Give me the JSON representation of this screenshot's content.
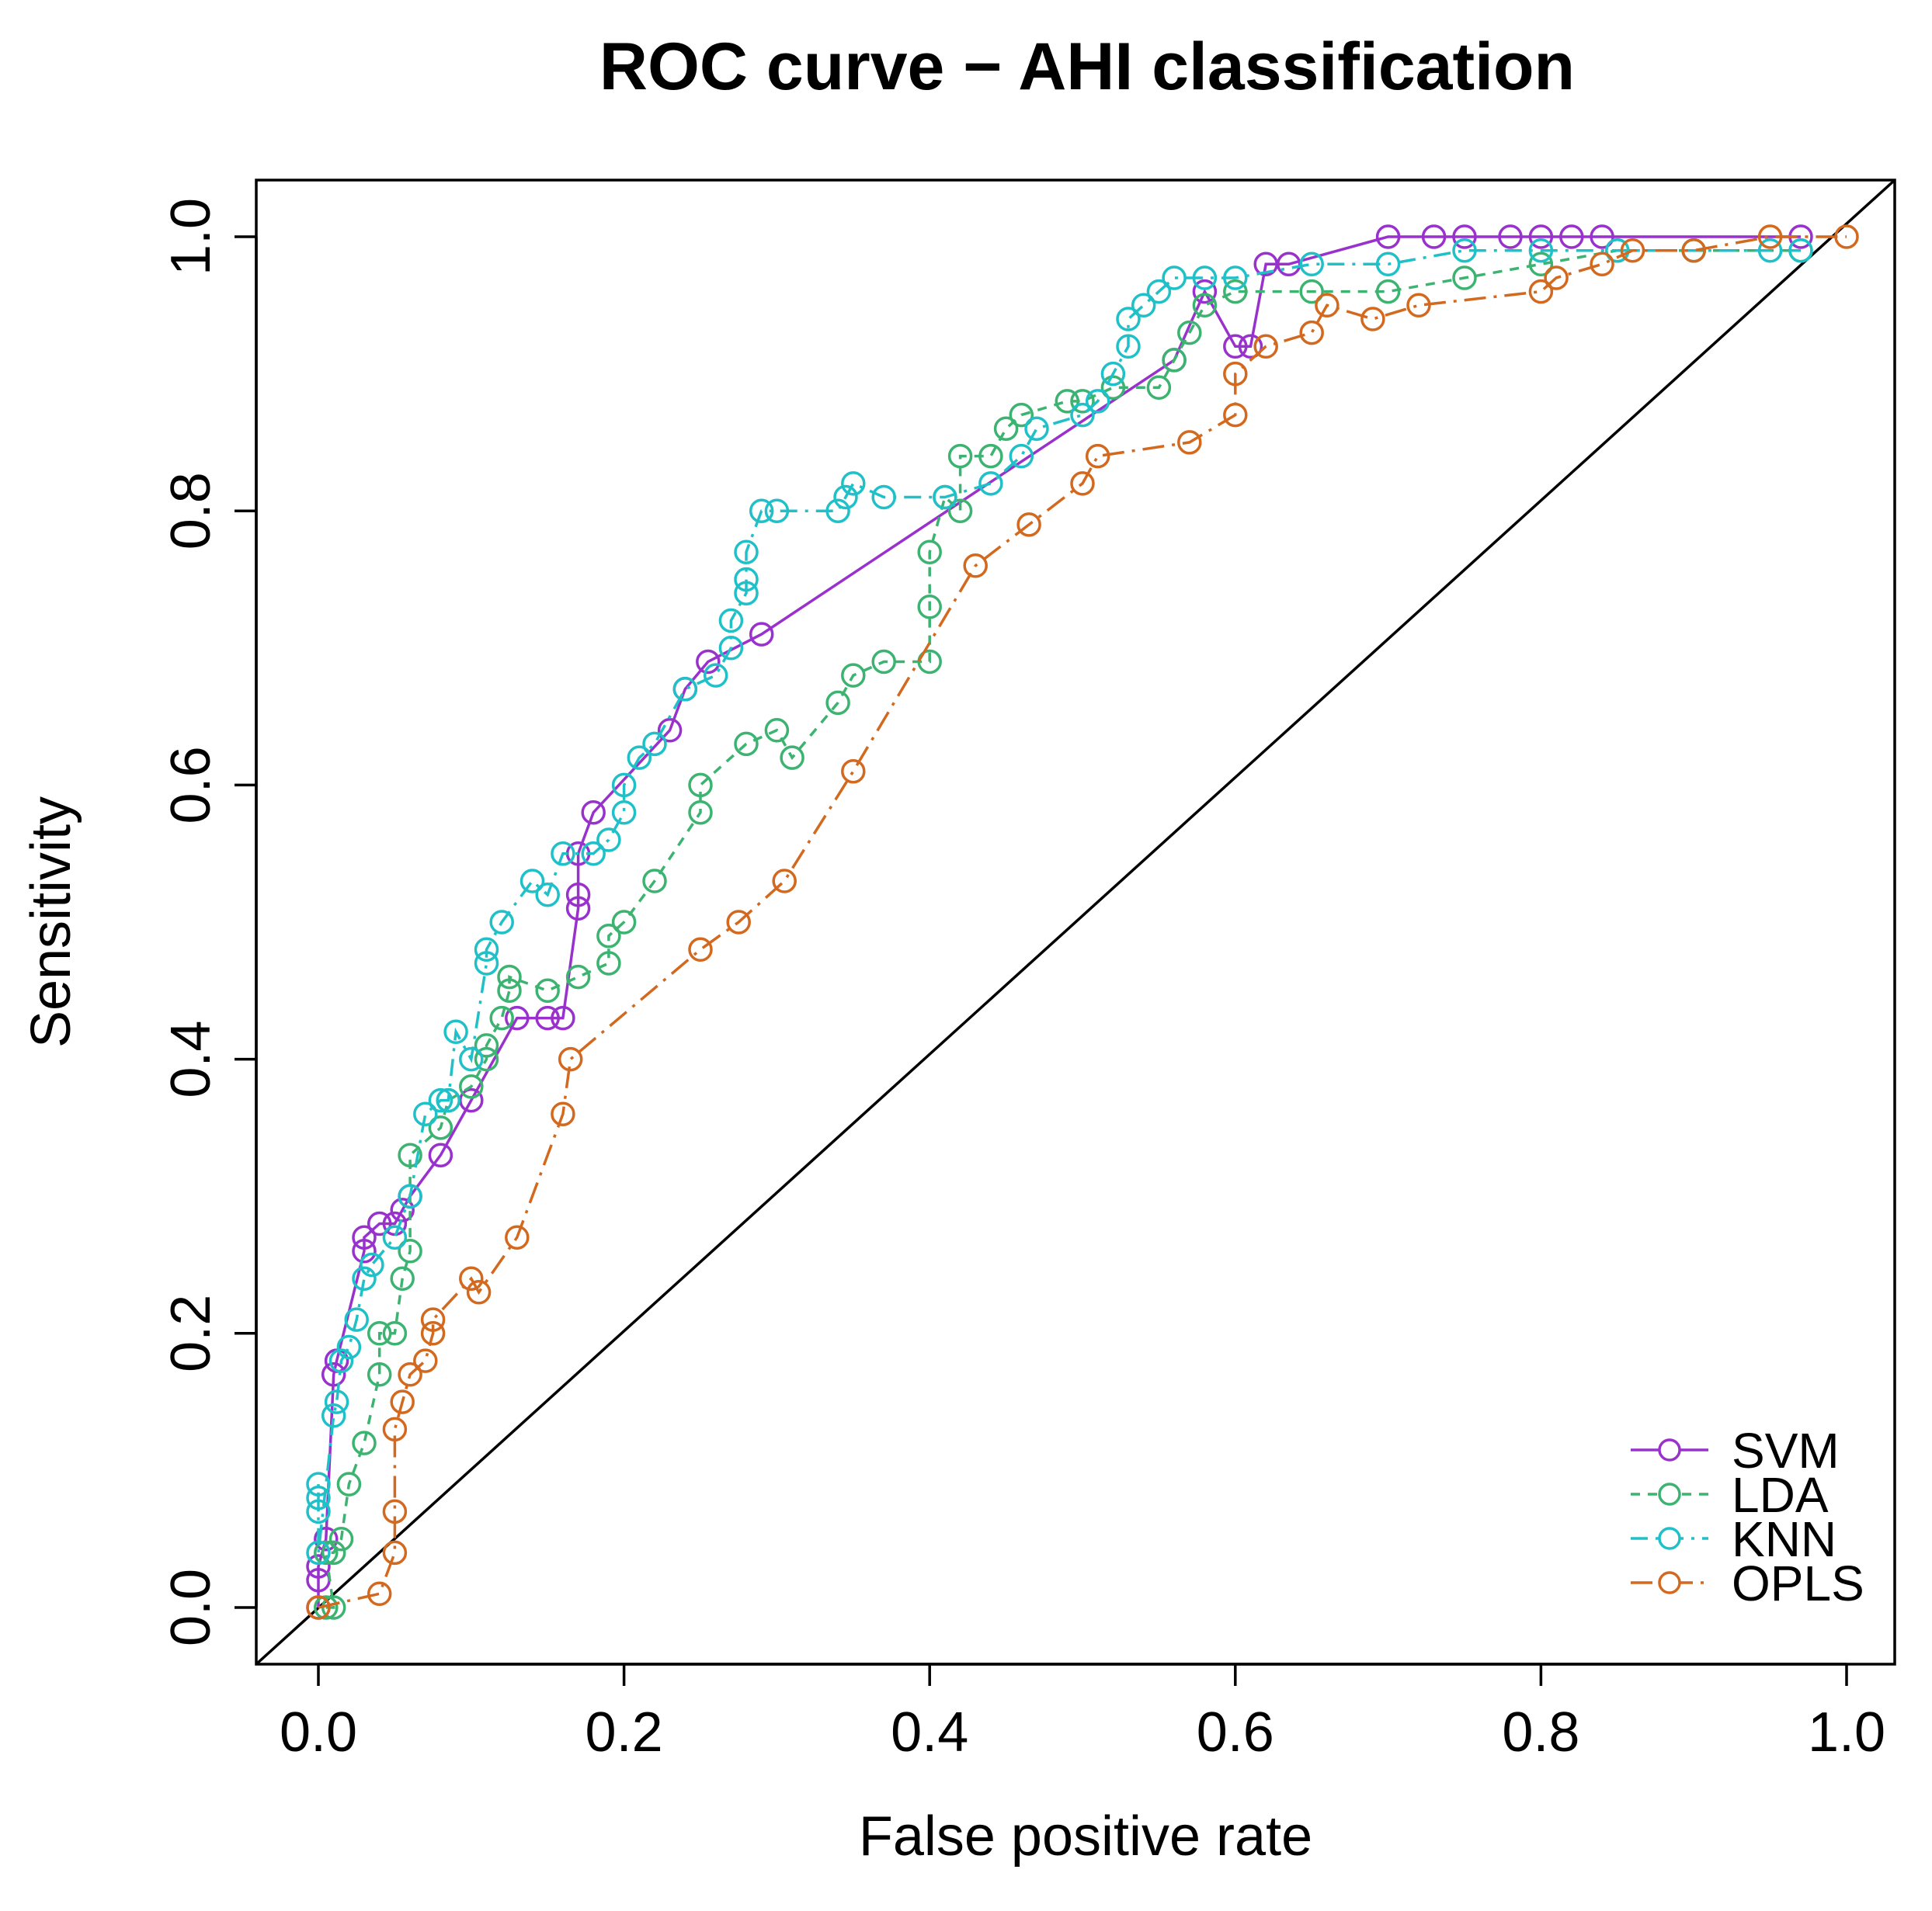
{
  "chart_data": {
    "type": "line",
    "title": "ROC curve − AHI classification",
    "xlabel": "False positive rate",
    "ylabel": "Sensitivity",
    "xlim": [
      0,
      1
    ],
    "ylim": [
      0,
      1
    ],
    "xticks": [
      "0.0",
      "0.2",
      "0.4",
      "0.6",
      "0.8",
      "1.0"
    ],
    "yticks": [
      "0.0",
      "0.2",
      "0.4",
      "0.6",
      "0.8",
      "1.0"
    ],
    "xtick_values": [
      0,
      0.2,
      0.4,
      0.6,
      0.8,
      1.0
    ],
    "ytick_values": [
      0,
      0.2,
      0.4,
      0.6,
      0.8,
      1.0
    ],
    "legend_position": "bottom-right",
    "reference_line": "diagonal",
    "series": [
      {
        "name": "SVM",
        "color": "#9932cc",
        "dash": "solid",
        "points": [
          [
            0,
            0
          ],
          [
            0,
            0.02
          ],
          [
            0,
            0.03
          ],
          [
            0.005,
            0.05
          ],
          [
            0.01,
            0.17
          ],
          [
            0.012,
            0.18
          ],
          [
            0.03,
            0.26
          ],
          [
            0.03,
            0.27
          ],
          [
            0.04,
            0.28
          ],
          [
            0.05,
            0.28
          ],
          [
            0.055,
            0.29
          ],
          [
            0.06,
            0.3
          ],
          [
            0.08,
            0.33
          ],
          [
            0.1,
            0.37
          ],
          [
            0.13,
            0.43
          ],
          [
            0.15,
            0.43
          ],
          [
            0.16,
            0.43
          ],
          [
            0.17,
            0.51
          ],
          [
            0.17,
            0.52
          ],
          [
            0.17,
            0.55
          ],
          [
            0.18,
            0.58
          ],
          [
            0.23,
            0.64
          ],
          [
            0.24,
            0.67
          ],
          [
            0.255,
            0.69
          ],
          [
            0.29,
            0.71
          ],
          [
            0.56,
            0.91
          ],
          [
            0.58,
            0.96
          ],
          [
            0.6,
            0.92
          ],
          [
            0.61,
            0.92
          ],
          [
            0.62,
            0.98
          ],
          [
            0.635,
            0.98
          ],
          [
            0.7,
            1.0
          ],
          [
            0.73,
            1.0
          ],
          [
            0.75,
            1.0
          ],
          [
            0.78,
            1.0
          ],
          [
            0.8,
            1.0
          ],
          [
            0.82,
            1.0
          ],
          [
            0.84,
            1.0
          ],
          [
            0.97,
            1.0
          ]
        ]
      },
      {
        "name": "LDA",
        "color": "#3cb371",
        "dash": "12,10",
        "points": [
          [
            0.005,
            0
          ],
          [
            0.01,
            0
          ],
          [
            0.005,
            0.04
          ],
          [
            0.01,
            0.04
          ],
          [
            0.015,
            0.05
          ],
          [
            0.02,
            0.09
          ],
          [
            0.03,
            0.12
          ],
          [
            0.04,
            0.17
          ],
          [
            0.04,
            0.2
          ],
          [
            0.05,
            0.2
          ],
          [
            0.055,
            0.24
          ],
          [
            0.06,
            0.26
          ],
          [
            0.06,
            0.33
          ],
          [
            0.08,
            0.35
          ],
          [
            0.085,
            0.37
          ],
          [
            0.1,
            0.38
          ],
          [
            0.11,
            0.4
          ],
          [
            0.11,
            0.41
          ],
          [
            0.12,
            0.43
          ],
          [
            0.125,
            0.45
          ],
          [
            0.125,
            0.46
          ],
          [
            0.15,
            0.45
          ],
          [
            0.17,
            0.46
          ],
          [
            0.19,
            0.47
          ],
          [
            0.19,
            0.49
          ],
          [
            0.2,
            0.5
          ],
          [
            0.22,
            0.53
          ],
          [
            0.25,
            0.58
          ],
          [
            0.25,
            0.6
          ],
          [
            0.28,
            0.63
          ],
          [
            0.3,
            0.64
          ],
          [
            0.31,
            0.62
          ],
          [
            0.34,
            0.66
          ],
          [
            0.35,
            0.68
          ],
          [
            0.37,
            0.69
          ],
          [
            0.4,
            0.69
          ],
          [
            0.4,
            0.73
          ],
          [
            0.4,
            0.77
          ],
          [
            0.41,
            0.81
          ],
          [
            0.42,
            0.8
          ],
          [
            0.42,
            0.84
          ],
          [
            0.44,
            0.84
          ],
          [
            0.45,
            0.86
          ],
          [
            0.46,
            0.87
          ],
          [
            0.49,
            0.88
          ],
          [
            0.5,
            0.88
          ],
          [
            0.52,
            0.89
          ],
          [
            0.55,
            0.89
          ],
          [
            0.56,
            0.91
          ],
          [
            0.57,
            0.93
          ],
          [
            0.58,
            0.95
          ],
          [
            0.6,
            0.96
          ],
          [
            0.65,
            0.96
          ],
          [
            0.7,
            0.96
          ],
          [
            0.75,
            0.97
          ],
          [
            0.8,
            0.98
          ],
          [
            0.85,
            0.99
          ],
          [
            0.9,
            0.99
          ],
          [
            0.97,
            0.99
          ]
        ]
      },
      {
        "name": "KNN",
        "color": "#20c0c8",
        "dash": "22,10,4,10",
        "points": [
          [
            0,
            0.07
          ],
          [
            0,
            0.08
          ],
          [
            0,
            0.09
          ],
          [
            0,
            0.04
          ],
          [
            0.01,
            0.14
          ],
          [
            0.012,
            0.15
          ],
          [
            0.015,
            0.18
          ],
          [
            0.02,
            0.19
          ],
          [
            0.025,
            0.21
          ],
          [
            0.03,
            0.24
          ],
          [
            0.035,
            0.25
          ],
          [
            0.05,
            0.27
          ],
          [
            0.06,
            0.3
          ],
          [
            0.07,
            0.36
          ],
          [
            0.08,
            0.37
          ],
          [
            0.085,
            0.37
          ],
          [
            0.09,
            0.42
          ],
          [
            0.1,
            0.4
          ],
          [
            0.11,
            0.47
          ],
          [
            0.11,
            0.48
          ],
          [
            0.12,
            0.5
          ],
          [
            0.14,
            0.53
          ],
          [
            0.15,
            0.52
          ],
          [
            0.16,
            0.55
          ],
          [
            0.18,
            0.55
          ],
          [
            0.19,
            0.56
          ],
          [
            0.2,
            0.58
          ],
          [
            0.2,
            0.6
          ],
          [
            0.21,
            0.62
          ],
          [
            0.22,
            0.63
          ],
          [
            0.24,
            0.67
          ],
          [
            0.26,
            0.68
          ],
          [
            0.27,
            0.7
          ],
          [
            0.27,
            0.72
          ],
          [
            0.28,
            0.74
          ],
          [
            0.28,
            0.75
          ],
          [
            0.28,
            0.77
          ],
          [
            0.29,
            0.8
          ],
          [
            0.3,
            0.8
          ],
          [
            0.34,
            0.8
          ],
          [
            0.345,
            0.81
          ],
          [
            0.35,
            0.82
          ],
          [
            0.37,
            0.81
          ],
          [
            0.41,
            0.81
          ],
          [
            0.44,
            0.82
          ],
          [
            0.46,
            0.84
          ],
          [
            0.47,
            0.86
          ],
          [
            0.5,
            0.87
          ],
          [
            0.51,
            0.88
          ],
          [
            0.52,
            0.9
          ],
          [
            0.53,
            0.92
          ],
          [
            0.53,
            0.94
          ],
          [
            0.54,
            0.95
          ],
          [
            0.55,
            0.96
          ],
          [
            0.56,
            0.97
          ],
          [
            0.58,
            0.97
          ],
          [
            0.6,
            0.97
          ],
          [
            0.65,
            0.98
          ],
          [
            0.7,
            0.98
          ],
          [
            0.75,
            0.99
          ],
          [
            0.8,
            0.99
          ],
          [
            0.85,
            0.99
          ],
          [
            0.9,
            0.99
          ],
          [
            0.95,
            0.99
          ],
          [
            0.97,
            0.99
          ]
        ]
      },
      {
        "name": "OPLS",
        "color": "#d2691e",
        "dash": "28,10,4,10",
        "points": [
          [
            0,
            0
          ],
          [
            0.04,
            0.01
          ],
          [
            0.05,
            0.04
          ],
          [
            0.05,
            0.07
          ],
          [
            0.05,
            0.13
          ],
          [
            0.055,
            0.15
          ],
          [
            0.06,
            0.17
          ],
          [
            0.07,
            0.18
          ],
          [
            0.075,
            0.2
          ],
          [
            0.075,
            0.21
          ],
          [
            0.1,
            0.24
          ],
          [
            0.105,
            0.23
          ],
          [
            0.13,
            0.27
          ],
          [
            0.16,
            0.36
          ],
          [
            0.165,
            0.4
          ],
          [
            0.25,
            0.48
          ],
          [
            0.275,
            0.5
          ],
          [
            0.305,
            0.53
          ],
          [
            0.35,
            0.61
          ],
          [
            0.43,
            0.76
          ],
          [
            0.465,
            0.79
          ],
          [
            0.5,
            0.82
          ],
          [
            0.51,
            0.84
          ],
          [
            0.57,
            0.85
          ],
          [
            0.6,
            0.87
          ],
          [
            0.6,
            0.9
          ],
          [
            0.62,
            0.92
          ],
          [
            0.65,
            0.93
          ],
          [
            0.66,
            0.95
          ],
          [
            0.69,
            0.94
          ],
          [
            0.72,
            0.95
          ],
          [
            0.8,
            0.96
          ],
          [
            0.81,
            0.97
          ],
          [
            0.84,
            0.98
          ],
          [
            0.86,
            0.99
          ],
          [
            0.9,
            0.99
          ],
          [
            0.95,
            1.0
          ],
          [
            1.0,
            1.0
          ]
        ]
      }
    ]
  }
}
